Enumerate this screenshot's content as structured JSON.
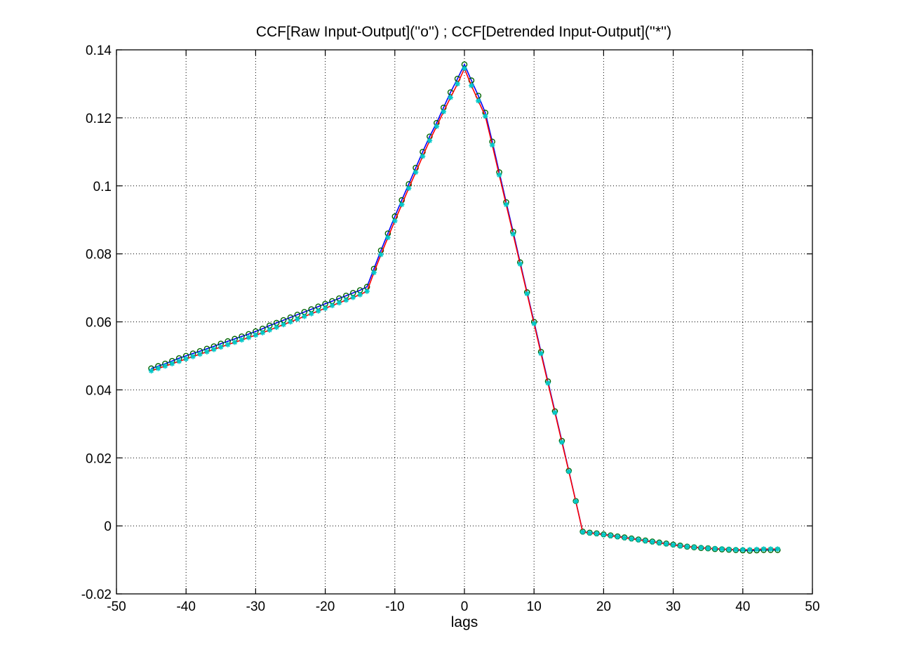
{
  "chart_data": {
    "type": "line",
    "title": "CCF[Raw Input-Output](''o'') ;  CCF[Detrended Input-Output](''*'')",
    "xlabel": "lags",
    "ylabel": "",
    "xlim": [
      -50,
      50
    ],
    "ylim": [
      -0.02,
      0.14
    ],
    "xticks": [
      -50,
      -40,
      -30,
      -20,
      -10,
      0,
      10,
      20,
      30,
      40,
      50
    ],
    "yticks": [
      -0.02,
      0,
      0.02,
      0.04,
      0.06,
      0.08,
      0.1,
      0.12,
      0.14
    ],
    "xtick_labels": [
      "-50",
      "-40",
      "-30",
      "-20",
      "-10",
      "0",
      "10",
      "20",
      "30",
      "40",
      "50"
    ],
    "ytick_labels": [
      "-0.02",
      "0",
      "0.02",
      "0.04",
      "0.06",
      "0.08",
      "0.1",
      "0.12",
      "0.14"
    ],
    "grid": true,
    "colors": {
      "raw_line": "#0000ff",
      "raw_marker": "#006400",
      "detrended_line": "#ff0000",
      "detrended_marker": "#00c8c8"
    },
    "series": [
      {
        "marker": "o",
        "x": [
          -45,
          -44,
          -43,
          -42,
          -41,
          -40,
          -39,
          -38,
          -37,
          -36,
          -35,
          -34,
          -33,
          -32,
          -31,
          -30,
          -29,
          -28,
          -27,
          -26,
          -25,
          -24,
          -23,
          -22,
          -21,
          -20,
          -19,
          -18,
          -17,
          -16,
          -15,
          -14,
          -13,
          -12,
          -11,
          -10,
          -9,
          -8,
          -7,
          -6,
          -5,
          -4,
          -3,
          -2,
          -1,
          0,
          1,
          2,
          3,
          4,
          5,
          6,
          7,
          8,
          9,
          10,
          11,
          12,
          13,
          14,
          15,
          16,
          17,
          18,
          19,
          20,
          21,
          22,
          23,
          24,
          25,
          26,
          27,
          28,
          29,
          30,
          31,
          32,
          33,
          34,
          35,
          36,
          37,
          38,
          39,
          40,
          41,
          42,
          43,
          44,
          45
        ],
        "y": [
          0.0463,
          0.047,
          0.0477,
          0.0485,
          0.0493,
          0.05,
          0.0507,
          0.0514,
          0.0521,
          0.0528,
          0.0536,
          0.0543,
          0.055,
          0.0557,
          0.0564,
          0.0572,
          0.058,
          0.0589,
          0.0597,
          0.0605,
          0.0613,
          0.0621,
          0.0629,
          0.0637,
          0.0645,
          0.0653,
          0.0661,
          0.0669,
          0.0677,
          0.0685,
          0.0693,
          0.0703,
          0.0756,
          0.081,
          0.086,
          0.091,
          0.0958,
          0.1005,
          0.1053,
          0.11,
          0.1145,
          0.1185,
          0.123,
          0.1275,
          0.1315,
          0.1357,
          0.131,
          0.1265,
          0.1215,
          0.113,
          0.104,
          0.0952,
          0.0865,
          0.0775,
          0.0687,
          0.06,
          0.0512,
          0.0425,
          0.0337,
          0.025,
          0.0162,
          0.0073,
          -0.0017,
          -0.002,
          -0.0022,
          -0.0025,
          -0.0028,
          -0.0031,
          -0.0034,
          -0.0037,
          -0.004,
          -0.0043,
          -0.0046,
          -0.0049,
          -0.0052,
          -0.0055,
          -0.0058,
          -0.0061,
          -0.0063,
          -0.0065,
          -0.0066,
          -0.0068,
          -0.0069,
          -0.007,
          -0.0071,
          -0.0072,
          -0.0073,
          -0.0072,
          -0.0071,
          -0.0071,
          -0.0071
        ]
      },
      {
        "marker": "*",
        "x": [
          -45,
          -44,
          -43,
          -42,
          -41,
          -40,
          -39,
          -38,
          -37,
          -36,
          -35,
          -34,
          -33,
          -32,
          -31,
          -30,
          -29,
          -28,
          -27,
          -26,
          -25,
          -24,
          -23,
          -22,
          -21,
          -20,
          -19,
          -18,
          -17,
          -16,
          -15,
          -14,
          -13,
          -12,
          -11,
          -10,
          -9,
          -8,
          -7,
          -6,
          -5,
          -4,
          -3,
          -2,
          -1,
          0,
          1,
          2,
          3,
          4,
          5,
          6,
          7,
          8,
          9,
          10,
          11,
          12,
          13,
          14,
          15,
          16,
          17,
          18,
          19,
          20,
          21,
          22,
          23,
          24,
          25,
          26,
          27,
          28,
          29,
          30,
          31,
          32,
          33,
          34,
          35,
          36,
          37,
          38,
          39,
          40,
          41,
          42,
          43,
          44,
          45
        ],
        "y": [
          0.0456,
          0.0463,
          0.047,
          0.0477,
          0.0484,
          0.0491,
          0.0498,
          0.0505,
          0.0512,
          0.0519,
          0.0526,
          0.0533,
          0.054,
          0.0547,
          0.0554,
          0.0561,
          0.0568,
          0.0576,
          0.0584,
          0.0592,
          0.06,
          0.0608,
          0.0616,
          0.0624,
          0.0632,
          0.064,
          0.0648,
          0.0656,
          0.0664,
          0.0672,
          0.068,
          0.069,
          0.0745,
          0.0798,
          0.0848,
          0.0897,
          0.0945,
          0.0993,
          0.104,
          0.1087,
          0.1133,
          0.1175,
          0.1218,
          0.126,
          0.13,
          0.1345,
          0.1295,
          0.125,
          0.1205,
          0.112,
          0.1032,
          0.0945,
          0.0858,
          0.077,
          0.0683,
          0.0595,
          0.0507,
          0.042,
          0.0333,
          0.0246,
          0.016,
          0.0072,
          -0.0018,
          -0.0021,
          -0.0023,
          -0.0026,
          -0.0029,
          -0.0032,
          -0.0035,
          -0.0038,
          -0.0041,
          -0.0044,
          -0.0047,
          -0.005,
          -0.0053,
          -0.0056,
          -0.0059,
          -0.0061,
          -0.0063,
          -0.0064,
          -0.0066,
          -0.0067,
          -0.0068,
          -0.0069,
          -0.007,
          -0.007,
          -0.007,
          -0.0069,
          -0.0068,
          -0.0068,
          -0.0068
        ]
      }
    ]
  }
}
